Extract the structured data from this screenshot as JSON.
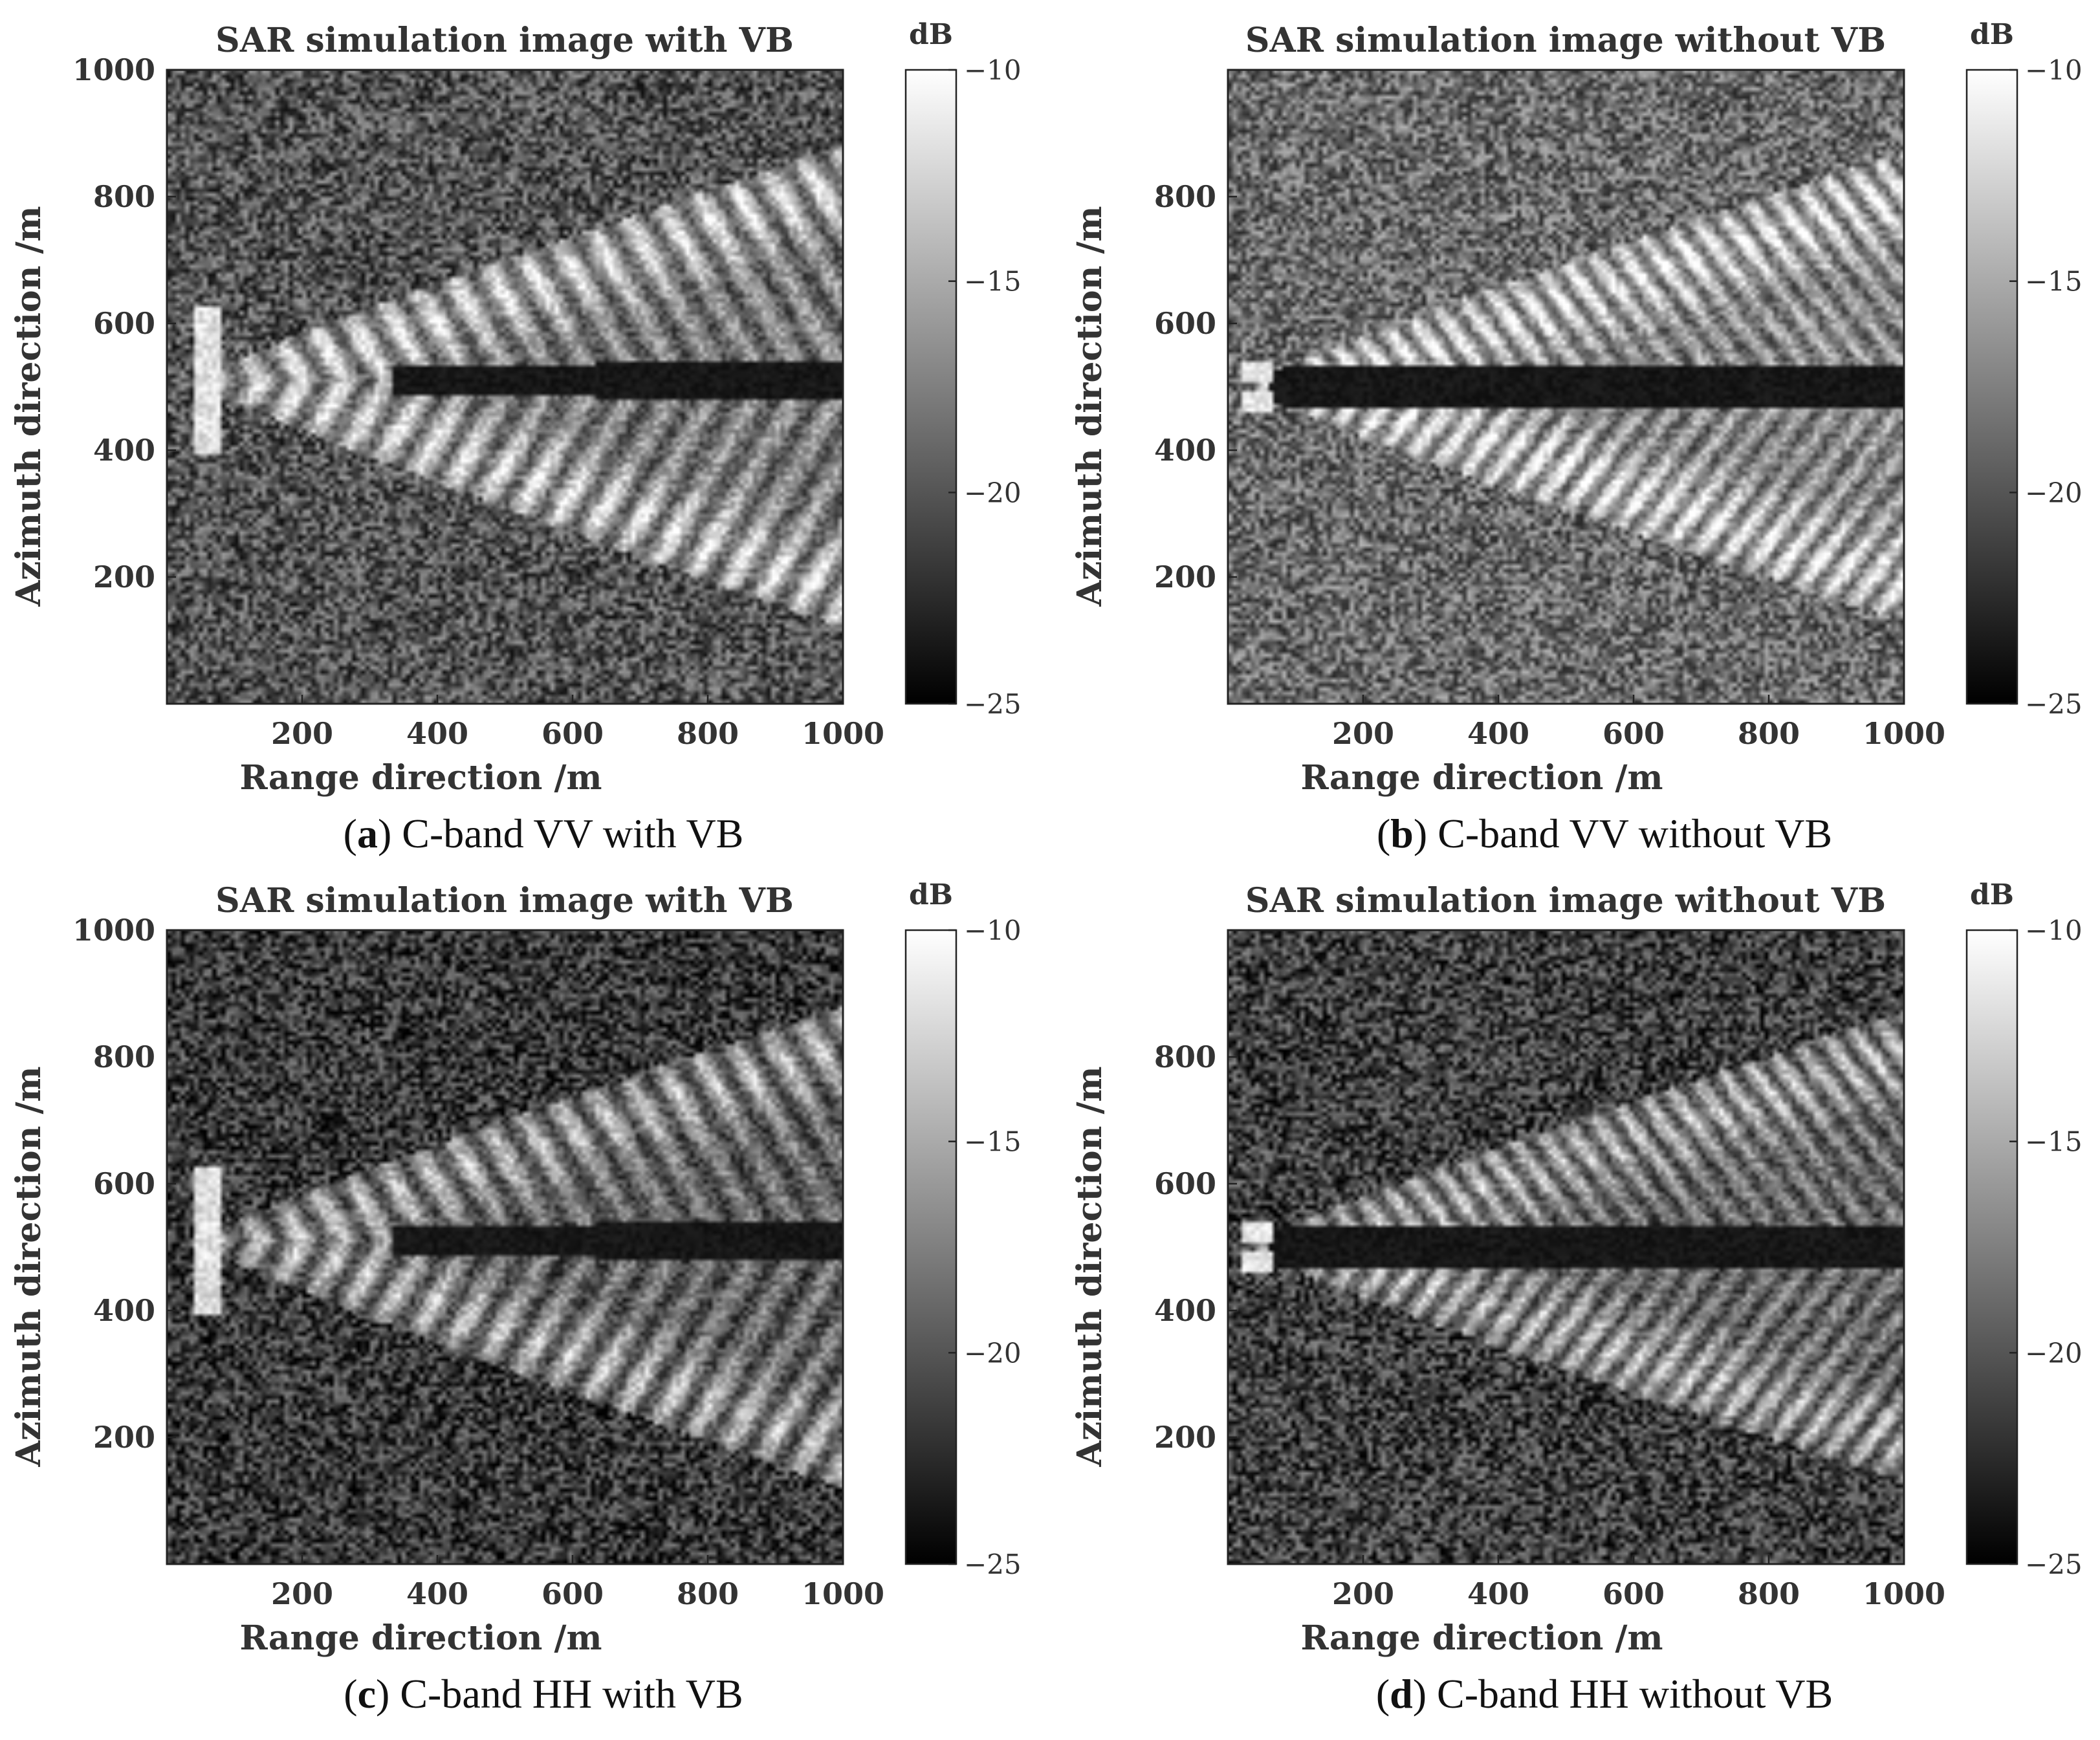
{
  "chart_data": [
    {
      "type": "heatmap",
      "title": "SAR simulation image with VB",
      "caption_letter": "a",
      "caption_text": "C-band VV with VB",
      "caption_open": "(",
      "caption_close": ")",
      "xlabel": "Range direction /m",
      "ylabel": "Azimuth direction /m",
      "xlim": [
        0,
        1000
      ],
      "ylim": [
        0,
        1000
      ],
      "xticks": [
        "200",
        "400",
        "600",
        "800",
        "1000"
      ],
      "yticks": [
        "200",
        "400",
        "600",
        "800",
        "1000"
      ],
      "colorbar": {
        "label": "dB",
        "range": [
          -25,
          -10
        ],
        "ticks": [
          "−10",
          "−15",
          "−20",
          "−25"
        ]
      },
      "pattern": {
        "wake": "with-vb",
        "background_mean": 0.33,
        "wake_strength": 1.0,
        "centerline_y": 510,
        "arm_upper_end": [
          1000,
          880
        ],
        "arm_lower_end": [
          1000,
          120
        ]
      }
    },
    {
      "type": "heatmap",
      "title": "SAR simulation image without VB",
      "caption_letter": "b",
      "caption_text": "C-band VV without VB",
      "caption_open": "(",
      "caption_close": ")",
      "xlabel": "Range direction /m",
      "ylabel": "Azimuth direction /m",
      "xlim": [
        0,
        1000
      ],
      "ylim": [
        0,
        1000
      ],
      "xticks": [
        "200",
        "400",
        "600",
        "800",
        "1000"
      ],
      "yticks": [
        "200",
        "400",
        "600",
        "800"
      ],
      "colorbar": {
        "label": "dB",
        "range": [
          -25,
          -10
        ],
        "ticks": [
          "−10",
          "−15",
          "−20",
          "−25"
        ]
      },
      "pattern": {
        "wake": "without-vb",
        "background_mean": 0.42,
        "wake_strength": 1.0,
        "centerline_y": 500,
        "arm_upper_end": [
          1000,
          870
        ],
        "arm_lower_end": [
          1000,
          130
        ]
      }
    },
    {
      "type": "heatmap",
      "title": "SAR simulation image with VB",
      "caption_letter": "c",
      "caption_text": "C-band HH with VB",
      "caption_open": "(",
      "caption_close": ")",
      "xlabel": "Range direction /m",
      "ylabel": "Azimuth direction /m",
      "xlim": [
        0,
        1000
      ],
      "ylim": [
        0,
        1000
      ],
      "xticks": [
        "200",
        "400",
        "600",
        "800",
        "1000"
      ],
      "yticks": [
        "200",
        "400",
        "600",
        "800",
        "1000"
      ],
      "colorbar": {
        "label": "dB",
        "range": [
          -25,
          -10
        ],
        "ticks": [
          "−10",
          "−15",
          "−20",
          "−25"
        ]
      },
      "pattern": {
        "wake": "with-vb",
        "background_mean": 0.22,
        "wake_strength": 0.9,
        "centerline_y": 510,
        "arm_upper_end": [
          1000,
          880
        ],
        "arm_lower_end": [
          1000,
          120
        ]
      }
    },
    {
      "type": "heatmap",
      "title": "SAR simulation image without VB",
      "caption_letter": "d",
      "caption_text": "C-band HH without VB",
      "caption_open": "(",
      "caption_close": ")",
      "xlabel": "Range direction /m",
      "ylabel": "Azimuth direction /m",
      "xlim": [
        0,
        1000
      ],
      "ylim": [
        0,
        1000
      ],
      "xticks": [
        "200",
        "400",
        "600",
        "800",
        "1000"
      ],
      "yticks": [
        "200",
        "400",
        "600",
        "800"
      ],
      "colorbar": {
        "label": "dB",
        "range": [
          -25,
          -10
        ],
        "ticks": [
          "−10",
          "−15",
          "−20",
          "−25"
        ]
      },
      "pattern": {
        "wake": "without-vb",
        "background_mean": 0.25,
        "wake_strength": 0.9,
        "centerline_y": 500,
        "arm_upper_end": [
          1000,
          870
        ],
        "arm_lower_end": [
          1000,
          130
        ]
      }
    }
  ]
}
